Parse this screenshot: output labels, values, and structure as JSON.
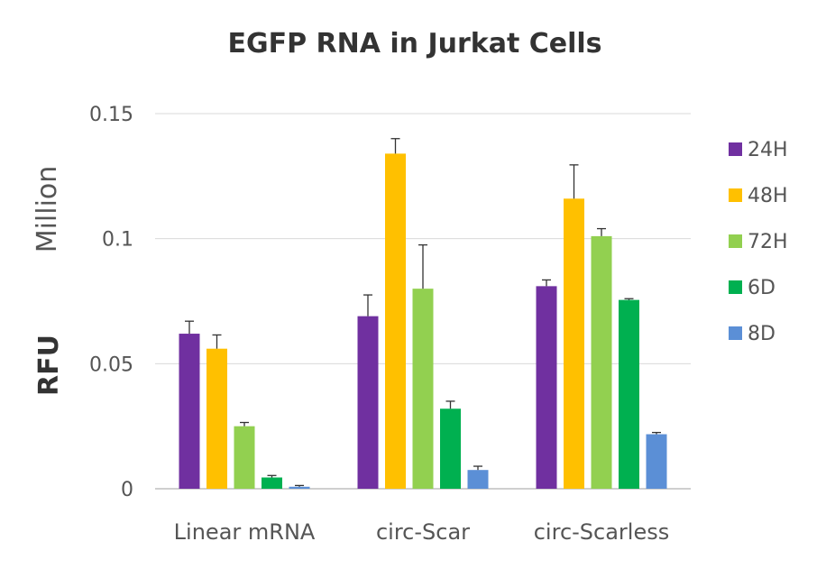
{
  "chart_data": {
    "type": "bar",
    "title": "EGFP RNA in Jurkat Cells",
    "ylabel_unit": "Million",
    "ylabel": "RFU",
    "categories": [
      "Linear mRNA",
      "circ-Scar",
      "circ-Scarless"
    ],
    "ylim": [
      0,
      0.15
    ],
    "yticks": [
      0,
      0.05,
      0.1,
      0.15
    ],
    "ytick_labels": [
      "0",
      "0.05",
      "0.1",
      "0.15"
    ],
    "grid": true,
    "legend_position": "right",
    "series": [
      {
        "name": "24H",
        "color": "#7030a0",
        "values": [
          0.062,
          0.069,
          0.081
        ],
        "errors": [
          0.005,
          0.0085,
          0.0025
        ]
      },
      {
        "name": "48H",
        "color": "#ffc000",
        "values": [
          0.056,
          0.134,
          0.116
        ],
        "errors": [
          0.0055,
          0.006,
          0.0135
        ]
      },
      {
        "name": "72H",
        "color": "#92d050",
        "values": [
          0.025,
          0.08,
          0.101
        ],
        "errors": [
          0.0015,
          0.0175,
          0.003
        ]
      },
      {
        "name": "6D",
        "color": "#00b050",
        "values": [
          0.0045,
          0.032,
          0.0755
        ],
        "errors": [
          0.0008,
          0.003,
          0.0005
        ]
      },
      {
        "name": "8D",
        "color": "#5b8fd6",
        "values": [
          0.0008,
          0.0075,
          0.0218
        ],
        "errors": [
          0.0005,
          0.0015,
          0.0007
        ]
      }
    ]
  }
}
